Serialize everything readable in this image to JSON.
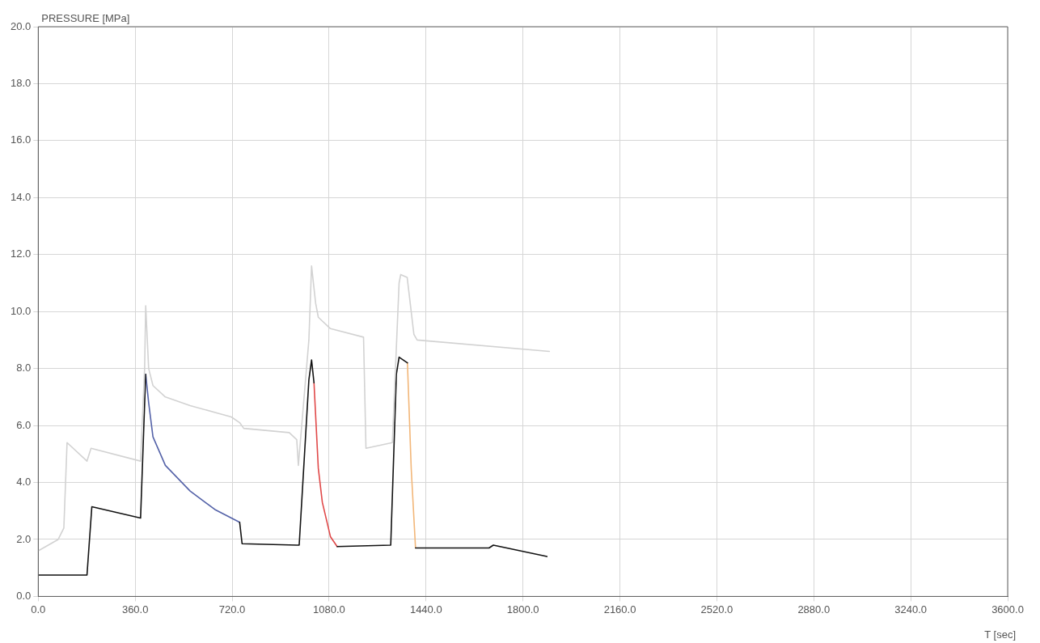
{
  "chart_data": {
    "type": "line",
    "xlabel": "T [sec]",
    "ylabel": "PRESSURE [MPa]",
    "xlim": [
      0,
      3600
    ],
    "ylim": [
      0,
      20
    ],
    "xticks": [
      {
        "value": 0,
        "label": "0.0"
      },
      {
        "value": 360,
        "label": "360.0"
      },
      {
        "value": 720,
        "label": "720.0"
      },
      {
        "value": 1080,
        "label": "1080.0"
      },
      {
        "value": 1440,
        "label": "1440.0"
      },
      {
        "value": 1800,
        "label": "1800.0"
      },
      {
        "value": 2160,
        "label": "2160.0"
      },
      {
        "value": 2520,
        "label": "2520.0"
      },
      {
        "value": 2880,
        "label": "2880.0"
      },
      {
        "value": 3240,
        "label": "3240.0"
      },
      {
        "value": 3600,
        "label": "3600.0"
      }
    ],
    "yticks": [
      {
        "value": 0,
        "label": "0.0"
      },
      {
        "value": 2,
        "label": "2.0"
      },
      {
        "value": 4,
        "label": "4.0"
      },
      {
        "value": 6,
        "label": "6.0"
      },
      {
        "value": 8,
        "label": "8.0"
      },
      {
        "value": 10,
        "label": "10.0"
      },
      {
        "value": 12,
        "label": "12.0"
      },
      {
        "value": 14,
        "label": "14.0"
      },
      {
        "value": 16,
        "label": "16.0"
      },
      {
        "value": 18,
        "label": "18.0"
      },
      {
        "value": 20,
        "label": "20.0"
      }
    ],
    "grid": true,
    "legend": false,
    "marker": "none",
    "line_style": "solid",
    "series": [
      {
        "color": "#d2d2d2",
        "x": [
          0,
          74,
          95,
          107,
          181,
          196,
          380,
          395,
          399,
          410,
          426,
          472,
          564,
          717,
          748,
          763,
          932,
          960,
          966,
          1005,
          1015,
          1030,
          1040,
          1085,
          1208,
          1217,
          1315,
          1340,
          1346,
          1370,
          1395,
          1407,
          1898
        ],
        "values": [
          1.6,
          2.0,
          2.4,
          5.4,
          4.75,
          5.2,
          4.75,
          8.0,
          10.2,
          8.0,
          7.4,
          7.0,
          6.7,
          6.3,
          6.1,
          5.9,
          5.75,
          5.5,
          4.6,
          9.0,
          11.6,
          10.3,
          9.8,
          9.4,
          9.1,
          5.2,
          5.4,
          11.0,
          11.3,
          11.2,
          9.2,
          9.0,
          8.6
        ]
      },
      {
        "color": "#111111",
        "x": [
          0,
          100,
          181,
          199,
          380,
          399,
          400,
          748,
          757,
          960,
          969,
          1005,
          1015,
          1024,
          1025,
          1110,
          1309,
          1330,
          1340,
          1371,
          1372,
          1401,
          1674,
          1690,
          1889
        ],
        "values": [
          0.75,
          0.75,
          0.75,
          3.15,
          2.75,
          7.8,
          null,
          2.6,
          1.85,
          1.8,
          1.8,
          7.6,
          8.3,
          7.5,
          null,
          1.75,
          1.8,
          7.8,
          8.4,
          8.2,
          null,
          1.7,
          1.7,
          1.8,
          1.4
        ]
      },
      {
        "color": "#5462a8",
        "x": [
          399,
          410,
          426,
          472,
          564,
          656,
          748
        ],
        "values": [
          7.8,
          6.8,
          5.6,
          4.6,
          3.7,
          3.05,
          2.6
        ]
      },
      {
        "color": "#e04848",
        "x": [
          1024,
          1040,
          1055,
          1085,
          1110
        ],
        "values": [
          7.5,
          4.5,
          3.3,
          2.1,
          1.75
        ]
      },
      {
        "color": "#f2b678",
        "x": [
          1371,
          1385,
          1401
        ],
        "values": [
          8.2,
          4.5,
          1.7
        ]
      }
    ]
  }
}
